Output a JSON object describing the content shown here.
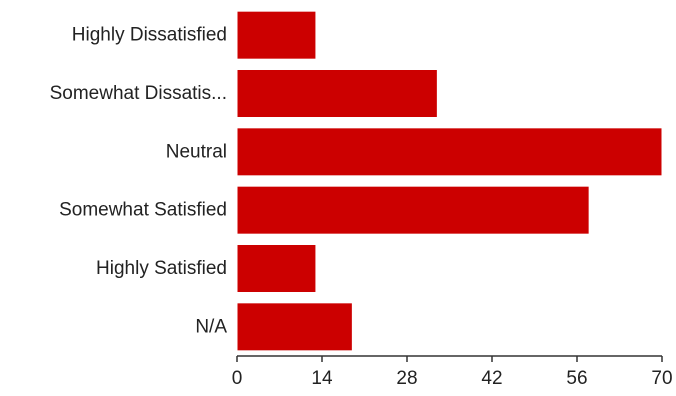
{
  "chart_data": {
    "type": "bar",
    "orientation": "horizontal",
    "categories": [
      "Highly Dissatisfied",
      "Somewhat Dissatis...",
      "Neutral",
      "Somewhat Satisfied",
      "Highly Satisfied",
      "N/A"
    ],
    "values": [
      13,
      33,
      70,
      58,
      13,
      19
    ],
    "xlim": [
      0,
      70
    ],
    "xticks": [
      0,
      14,
      28,
      42,
      56,
      70
    ],
    "title": "",
    "xlabel": "",
    "ylabel": "",
    "grid": false,
    "bar_color": "#cc0000",
    "bar_border_color": "#ffffff"
  }
}
